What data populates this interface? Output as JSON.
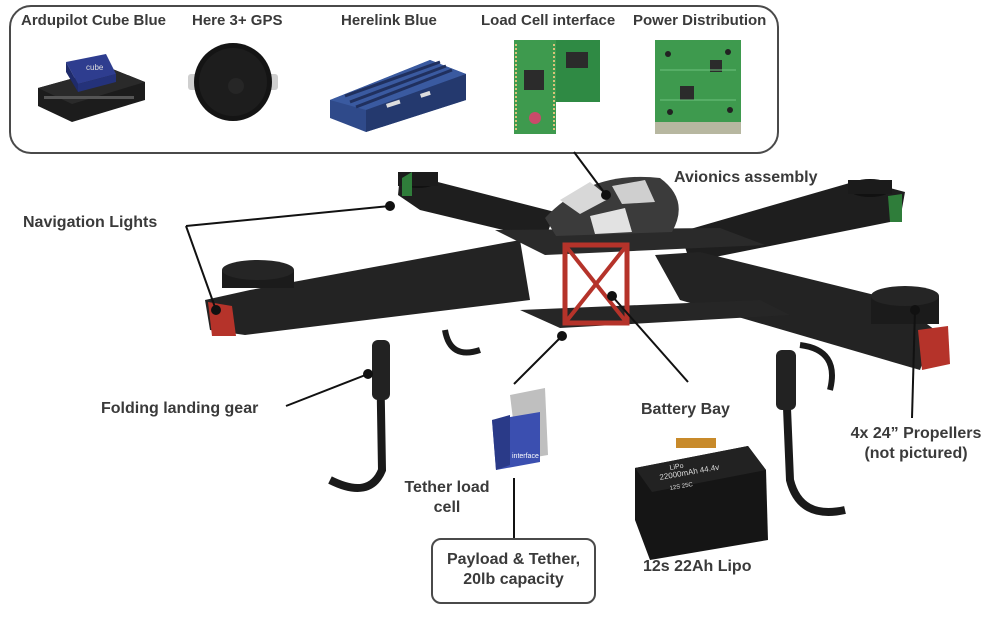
{
  "components": [
    {
      "name": "Ardupilot Cube Blue",
      "icon": "cube-autopilot-icon"
    },
    {
      "name": "Here 3+ GPS",
      "icon": "gps-puck-icon"
    },
    {
      "name": "Herelink Blue",
      "icon": "radio-module-icon"
    },
    {
      "name": "Load Cell interface",
      "icon": "pcb-board-icon"
    },
    {
      "name": "Power Distribution",
      "icon": "power-board-icon"
    }
  ],
  "callouts": {
    "avionics": "Avionics assembly",
    "nav_lights": "Navigation Lights",
    "landing_gear": "Folding landing gear",
    "battery_bay": "Battery Bay",
    "propellers_line1": "4x 24” Propellers",
    "propellers_line2": "(not pictured)",
    "tether_line1": "Tether load",
    "tether_line2": "cell",
    "payload_line1": "Payload & Tether,",
    "payload_line2": "20lb capacity",
    "lipo": "12s 22Ah Lipo"
  },
  "battery_label": {
    "line1": "LiPo",
    "line2": "22000mAh 44.4v",
    "line3": "12S 25C"
  },
  "loadcell_label": "interface",
  "cube_label": "cube",
  "colors": {
    "frame": "#1e1e1e",
    "bay": "#b5332a",
    "cube_blue": "#2e3d8f",
    "herelink_blue": "#2f4a8a",
    "pcb_green": "#3e9a4e",
    "nav_green": "#2f7d3a"
  }
}
